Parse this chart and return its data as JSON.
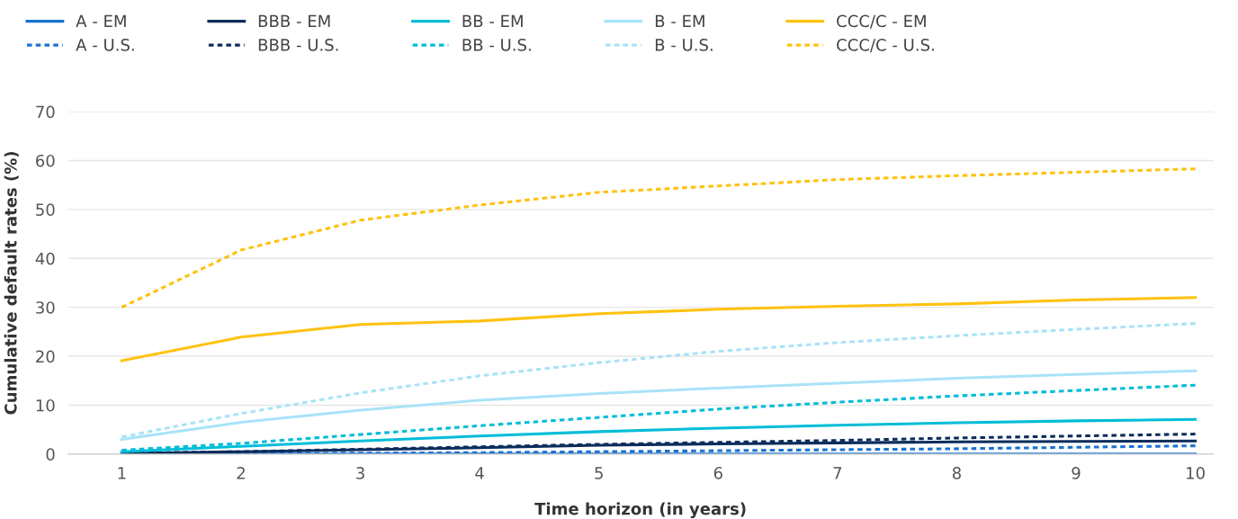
{
  "chart_data": {
    "type": "line",
    "xlabel": "Time horizon (in years)",
    "ylabel": "Cumulative default rates (%)",
    "categories": [
      "1",
      "2",
      "3",
      "4",
      "5",
      "6",
      "7",
      "8",
      "9",
      "10"
    ],
    "ylim": [
      0,
      70
    ],
    "yticks": [
      0,
      10,
      20,
      30,
      40,
      50,
      60,
      70
    ],
    "grid": "y",
    "legend": "top",
    "marker": "none",
    "series": [
      {
        "name": "A - EM",
        "color": "#1a72d0",
        "line_style": "solid",
        "values": [
          0,
          0,
          0,
          0,
          0,
          0,
          0,
          0,
          0,
          0
        ]
      },
      {
        "name": "A - U.S.",
        "color": "#1a72d0",
        "line_style": "dashed",
        "values": [
          0.1,
          0.1,
          0.2,
          0.3,
          0.5,
          0.7,
          0.9,
          1.1,
          1.4,
          1.7
        ]
      },
      {
        "name": "BBB - EM",
        "color": "#0b2d5c",
        "line_style": "solid",
        "values": [
          0.1,
          0.5,
          0.9,
          1.3,
          1.8,
          2.1,
          2.3,
          2.5,
          2.6,
          2.7
        ]
      },
      {
        "name": "BBB - U.S.",
        "color": "#0b2d5c",
        "line_style": "dashed",
        "values": [
          0.2,
          0.5,
          1.0,
          1.5,
          2.0,
          2.4,
          2.8,
          3.3,
          3.7,
          4.1
        ]
      },
      {
        "name": "BB - EM",
        "color": "#00bdd8",
        "line_style": "solid",
        "values": [
          0.5,
          1.6,
          2.7,
          3.7,
          4.6,
          5.3,
          5.9,
          6.4,
          6.8,
          7.1
        ]
      },
      {
        "name": "BB - U.S.",
        "color": "#00bdd8",
        "line_style": "dashed",
        "values": [
          0.8,
          2.2,
          4.0,
          5.8,
          7.5,
          9.2,
          10.6,
          11.9,
          13.0,
          14.1
        ]
      },
      {
        "name": "B - EM",
        "color": "#a8e3f8",
        "line_style": "solid",
        "values": [
          3.0,
          6.5,
          9.0,
          11.0,
          12.4,
          13.5,
          14.5,
          15.5,
          16.3,
          17.0
        ]
      },
      {
        "name": "B - U.S.",
        "color": "#a8e3f8",
        "line_style": "dashed",
        "values": [
          3.5,
          8.3,
          12.5,
          16.0,
          18.7,
          21.0,
          22.8,
          24.2,
          25.5,
          26.7
        ]
      },
      {
        "name": "CCC/C - EM",
        "color": "#ffc20e",
        "line_style": "solid",
        "values": [
          19.1,
          23.9,
          26.5,
          27.2,
          28.7,
          29.6,
          30.2,
          30.7,
          31.5,
          32.0
        ]
      },
      {
        "name": "CCC/C - U.S.",
        "color": "#ffc20e",
        "line_style": "dashed",
        "values": [
          30.0,
          41.7,
          47.8,
          50.9,
          53.5,
          54.8,
          56.1,
          56.9,
          57.6,
          58.3
        ]
      }
    ]
  }
}
